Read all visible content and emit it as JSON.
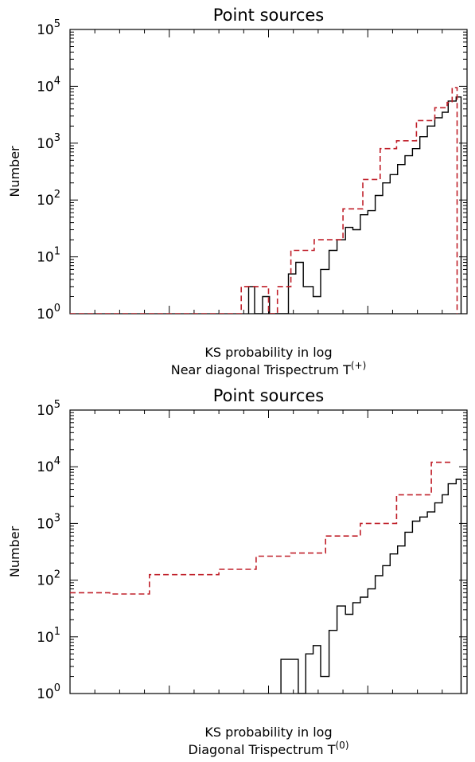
{
  "chart_data": [
    {
      "type": "histogram",
      "title": "Point sources",
      "ylabel": "Number",
      "xlabel": "KS probability in log",
      "subtitle_main": "Near diagonal Trispectrum T",
      "subtitle_sup": "(+)",
      "xlim": [
        -8,
        0
      ],
      "ylim": [
        1,
        100000
      ],
      "yscale": "log",
      "xticks": [
        "-8",
        "-6",
        "-4",
        "-2",
        "0"
      ],
      "yticks": [
        {
          "base": "10",
          "exp": "0"
        },
        {
          "base": "10",
          "exp": "1"
        },
        {
          "base": "10",
          "exp": "2"
        },
        {
          "base": "10",
          "exp": "3"
        },
        {
          "base": "10",
          "exp": "4"
        },
        {
          "base": "10",
          "exp": "5"
        }
      ],
      "series": [
        {
          "color": "#000000",
          "style": "solid",
          "steps": [
            [
              -4.4,
              1
            ],
            [
              -4.4,
              3
            ],
            [
              -4.28,
              3
            ],
            [
              -4.28,
              1
            ],
            [
              -4.12,
              1
            ],
            [
              -4.12,
              2
            ],
            [
              -3.98,
              2
            ],
            [
              -3.98,
              1
            ],
            [
              -3.6,
              1
            ],
            [
              -3.6,
              5
            ],
            [
              -3.45,
              5
            ],
            [
              -3.45,
              8
            ],
            [
              -3.3,
              8
            ],
            [
              -3.3,
              3
            ],
            [
              -3.1,
              3
            ],
            [
              -3.1,
              2
            ],
            [
              -2.95,
              2
            ],
            [
              -2.95,
              6
            ],
            [
              -2.78,
              6
            ],
            [
              -2.78,
              13
            ],
            [
              -2.62,
              13
            ],
            [
              -2.62,
              20
            ],
            [
              -2.45,
              20
            ],
            [
              -2.45,
              33
            ],
            [
              -2.3,
              33
            ],
            [
              -2.3,
              30
            ],
            [
              -2.15,
              30
            ],
            [
              -2.15,
              55
            ],
            [
              -2.0,
              55
            ],
            [
              -2.0,
              65
            ],
            [
              -1.85,
              65
            ],
            [
              -1.85,
              120
            ],
            [
              -1.7,
              120
            ],
            [
              -1.7,
              200
            ],
            [
              -1.55,
              200
            ],
            [
              -1.55,
              280
            ],
            [
              -1.4,
              280
            ],
            [
              -1.4,
              420
            ],
            [
              -1.25,
              420
            ],
            [
              -1.25,
              600
            ],
            [
              -1.1,
              600
            ],
            [
              -1.1,
              800
            ],
            [
              -0.95,
              800
            ],
            [
              -0.95,
              1300
            ],
            [
              -0.8,
              1300
            ],
            [
              -0.8,
              2000
            ],
            [
              -0.65,
              2000
            ],
            [
              -0.65,
              2800
            ],
            [
              -0.5,
              2800
            ],
            [
              -0.5,
              3500
            ],
            [
              -0.38,
              3500
            ],
            [
              -0.38,
              5500
            ],
            [
              -0.22,
              5500
            ],
            [
              -0.22,
              6500
            ],
            [
              -0.12,
              6500
            ],
            [
              -0.12,
              1
            ]
          ]
        },
        {
          "color": "#c0202a",
          "style": "dashed",
          "steps": [
            [
              -8,
              1
            ],
            [
              -4.55,
              1
            ],
            [
              -4.55,
              3
            ],
            [
              -4.0,
              3
            ],
            [
              -4.0,
              1
            ],
            [
              -3.82,
              1
            ],
            [
              -3.82,
              3
            ],
            [
              -3.55,
              3
            ],
            [
              -3.55,
              13
            ],
            [
              -3.08,
              13
            ],
            [
              -3.08,
              20
            ],
            [
              -2.5,
              20
            ],
            [
              -2.5,
              70
            ],
            [
              -2.1,
              70
            ],
            [
              -2.1,
              230
            ],
            [
              -1.75,
              230
            ],
            [
              -1.75,
              800
            ],
            [
              -1.42,
              800
            ],
            [
              -1.42,
              1100
            ],
            [
              -1.02,
              1100
            ],
            [
              -1.02,
              2500
            ],
            [
              -0.65,
              2500
            ],
            [
              -0.65,
              4200
            ],
            [
              -0.4,
              4200
            ],
            [
              -0.4,
              5200
            ],
            [
              -0.3,
              5200
            ],
            [
              -0.3,
              9500
            ],
            [
              -0.2,
              9500
            ],
            [
              -0.2,
              1
            ]
          ]
        }
      ]
    },
    {
      "type": "histogram",
      "title": "Point sources",
      "ylabel": "Number",
      "xlabel": "KS probability in log",
      "subtitle_main": "Diagonal Trispectrum T",
      "subtitle_sup": "(0)",
      "xlim": [
        -8,
        0
      ],
      "ylim": [
        1,
        100000
      ],
      "yscale": "log",
      "xticks": [
        "-8",
        "-6",
        "-4",
        "-2",
        "0"
      ],
      "yticks": [
        {
          "base": "10",
          "exp": "0"
        },
        {
          "base": "10",
          "exp": "1"
        },
        {
          "base": "10",
          "exp": "2"
        },
        {
          "base": "10",
          "exp": "3"
        },
        {
          "base": "10",
          "exp": "4"
        },
        {
          "base": "10",
          "exp": "5"
        }
      ],
      "series": [
        {
          "color": "#000000",
          "style": "solid",
          "steps": [
            [
              -3.75,
              1
            ],
            [
              -3.75,
              4
            ],
            [
              -3.4,
              4
            ],
            [
              -3.4,
              1
            ],
            [
              -3.25,
              1
            ],
            [
              -3.25,
              5
            ],
            [
              -3.1,
              5
            ],
            [
              -3.1,
              7
            ],
            [
              -2.95,
              7
            ],
            [
              -2.95,
              2
            ],
            [
              -2.78,
              2
            ],
            [
              -2.78,
              13
            ],
            [
              -2.62,
              13
            ],
            [
              -2.62,
              35
            ],
            [
              -2.45,
              35
            ],
            [
              -2.45,
              25
            ],
            [
              -2.3,
              25
            ],
            [
              -2.3,
              40
            ],
            [
              -2.15,
              40
            ],
            [
              -2.15,
              50
            ],
            [
              -2.0,
              50
            ],
            [
              -2.0,
              70
            ],
            [
              -1.85,
              70
            ],
            [
              -1.85,
              120
            ],
            [
              -1.7,
              120
            ],
            [
              -1.7,
              180
            ],
            [
              -1.55,
              180
            ],
            [
              -1.55,
              290
            ],
            [
              -1.4,
              290
            ],
            [
              -1.4,
              400
            ],
            [
              -1.25,
              400
            ],
            [
              -1.25,
              700
            ],
            [
              -1.1,
              700
            ],
            [
              -1.1,
              1100
            ],
            [
              -0.95,
              1100
            ],
            [
              -0.95,
              1300
            ],
            [
              -0.8,
              1300
            ],
            [
              -0.8,
              1600
            ],
            [
              -0.65,
              1600
            ],
            [
              -0.65,
              2300
            ],
            [
              -0.5,
              2300
            ],
            [
              -0.5,
              3200
            ],
            [
              -0.38,
              3200
            ],
            [
              -0.38,
              5000
            ],
            [
              -0.22,
              5000
            ],
            [
              -0.22,
              6000
            ],
            [
              -0.12,
              6000
            ],
            [
              -0.12,
              1
            ]
          ]
        },
        {
          "color": "#c0202a",
          "style": "dashed",
          "steps": [
            [
              -8,
              60
            ],
            [
              -7.2,
              60
            ],
            [
              -7.2,
              57
            ],
            [
              -6.4,
              57
            ],
            [
              -6.4,
              125
            ],
            [
              -5.0,
              125
            ],
            [
              -5.0,
              155
            ],
            [
              -4.25,
              155
            ],
            [
              -4.25,
              265
            ],
            [
              -3.55,
              265
            ],
            [
              -3.55,
              300
            ],
            [
              -2.85,
              300
            ],
            [
              -2.85,
              380
            ],
            [
              -2.85,
              600
            ],
            [
              -2.15,
              600
            ],
            [
              -2.15,
              1000
            ],
            [
              -1.42,
              1000
            ],
            [
              -1.42,
              3200
            ],
            [
              -0.72,
              3200
            ],
            [
              -0.72,
              12000
            ],
            [
              -0.3,
              12000
            ]
          ]
        }
      ]
    }
  ]
}
